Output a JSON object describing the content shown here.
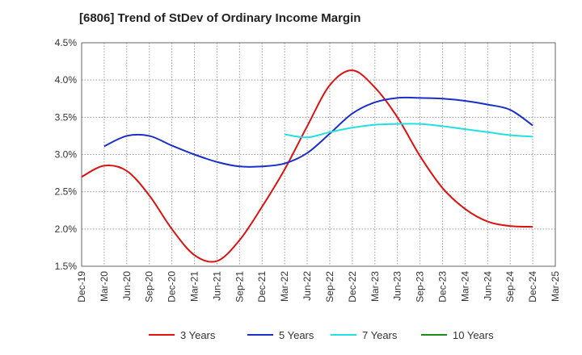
{
  "chart_data": {
    "type": "line",
    "title": "[6806]  Trend of StDev of Ordinary Income Margin",
    "xlabel": "",
    "ylabel": "",
    "x_ticks": [
      "Dec-19",
      "Mar-20",
      "Jun-20",
      "Sep-20",
      "Dec-20",
      "Mar-21",
      "Jun-21",
      "Sep-21",
      "Dec-21",
      "Mar-22",
      "Jun-22",
      "Sep-22",
      "Dec-22",
      "Mar-23",
      "Jun-23",
      "Sep-23",
      "Dec-23",
      "Mar-24",
      "Jun-24",
      "Sep-24",
      "Dec-24",
      "Mar-25"
    ],
    "y_ticks": [
      "1.5%",
      "2.0%",
      "2.5%",
      "3.0%",
      "3.5%",
      "4.0%",
      "4.5%"
    ],
    "ylim": [
      1.5,
      4.5
    ],
    "grid": true,
    "legend_position": "bottom",
    "series": [
      {
        "name": "3 Years",
        "color": "#dd1111",
        "points": [
          [
            "Dec-19",
            2.7
          ],
          [
            "Mar-20",
            2.85
          ],
          [
            "Jun-20",
            2.78
          ],
          [
            "Sep-20",
            2.45
          ],
          [
            "Dec-20",
            2.0
          ],
          [
            "Mar-21",
            1.65
          ],
          [
            "Jun-21",
            1.57
          ],
          [
            "Sep-21",
            1.85
          ],
          [
            "Dec-21",
            2.3
          ],
          [
            "Mar-22",
            2.8
          ],
          [
            "Jun-22",
            3.38
          ],
          [
            "Sep-22",
            3.93
          ],
          [
            "Dec-22",
            4.13
          ],
          [
            "Mar-23",
            3.9
          ],
          [
            "Jun-23",
            3.5
          ],
          [
            "Sep-23",
            2.98
          ],
          [
            "Dec-23",
            2.55
          ],
          [
            "Mar-24",
            2.27
          ],
          [
            "Jun-24",
            2.1
          ],
          [
            "Sep-24",
            2.04
          ],
          [
            "Dec-24",
            2.03
          ]
        ]
      },
      {
        "name": "5 Years",
        "color": "#1a2ec8",
        "points": [
          [
            "Mar-20",
            3.11
          ],
          [
            "Jun-20",
            3.25
          ],
          [
            "Sep-20",
            3.25
          ],
          [
            "Dec-20",
            3.12
          ],
          [
            "Mar-21",
            3.0
          ],
          [
            "Jun-21",
            2.9
          ],
          [
            "Sep-21",
            2.84
          ],
          [
            "Dec-21",
            2.84
          ],
          [
            "Mar-22",
            2.88
          ],
          [
            "Jun-22",
            3.02
          ],
          [
            "Sep-22",
            3.28
          ],
          [
            "Dec-22",
            3.55
          ],
          [
            "Mar-23",
            3.7
          ],
          [
            "Jun-23",
            3.76
          ],
          [
            "Sep-23",
            3.76
          ],
          [
            "Dec-23",
            3.75
          ],
          [
            "Mar-24",
            3.72
          ],
          [
            "Jun-24",
            3.67
          ],
          [
            "Sep-24",
            3.6
          ],
          [
            "Dec-24",
            3.39
          ]
        ]
      },
      {
        "name": "7 Years",
        "color": "#22e0e0",
        "points": [
          [
            "Mar-22",
            3.27
          ],
          [
            "Jun-22",
            3.23
          ],
          [
            "Sep-22",
            3.3
          ],
          [
            "Dec-22",
            3.36
          ],
          [
            "Mar-23",
            3.4
          ],
          [
            "Jun-23",
            3.41
          ],
          [
            "Sep-23",
            3.41
          ],
          [
            "Dec-23",
            3.38
          ],
          [
            "Mar-24",
            3.34
          ],
          [
            "Jun-24",
            3.3
          ],
          [
            "Sep-24",
            3.26
          ],
          [
            "Dec-24",
            3.24
          ]
        ]
      },
      {
        "name": "10 Years",
        "color": "#1a8a1a",
        "points": []
      }
    ]
  }
}
